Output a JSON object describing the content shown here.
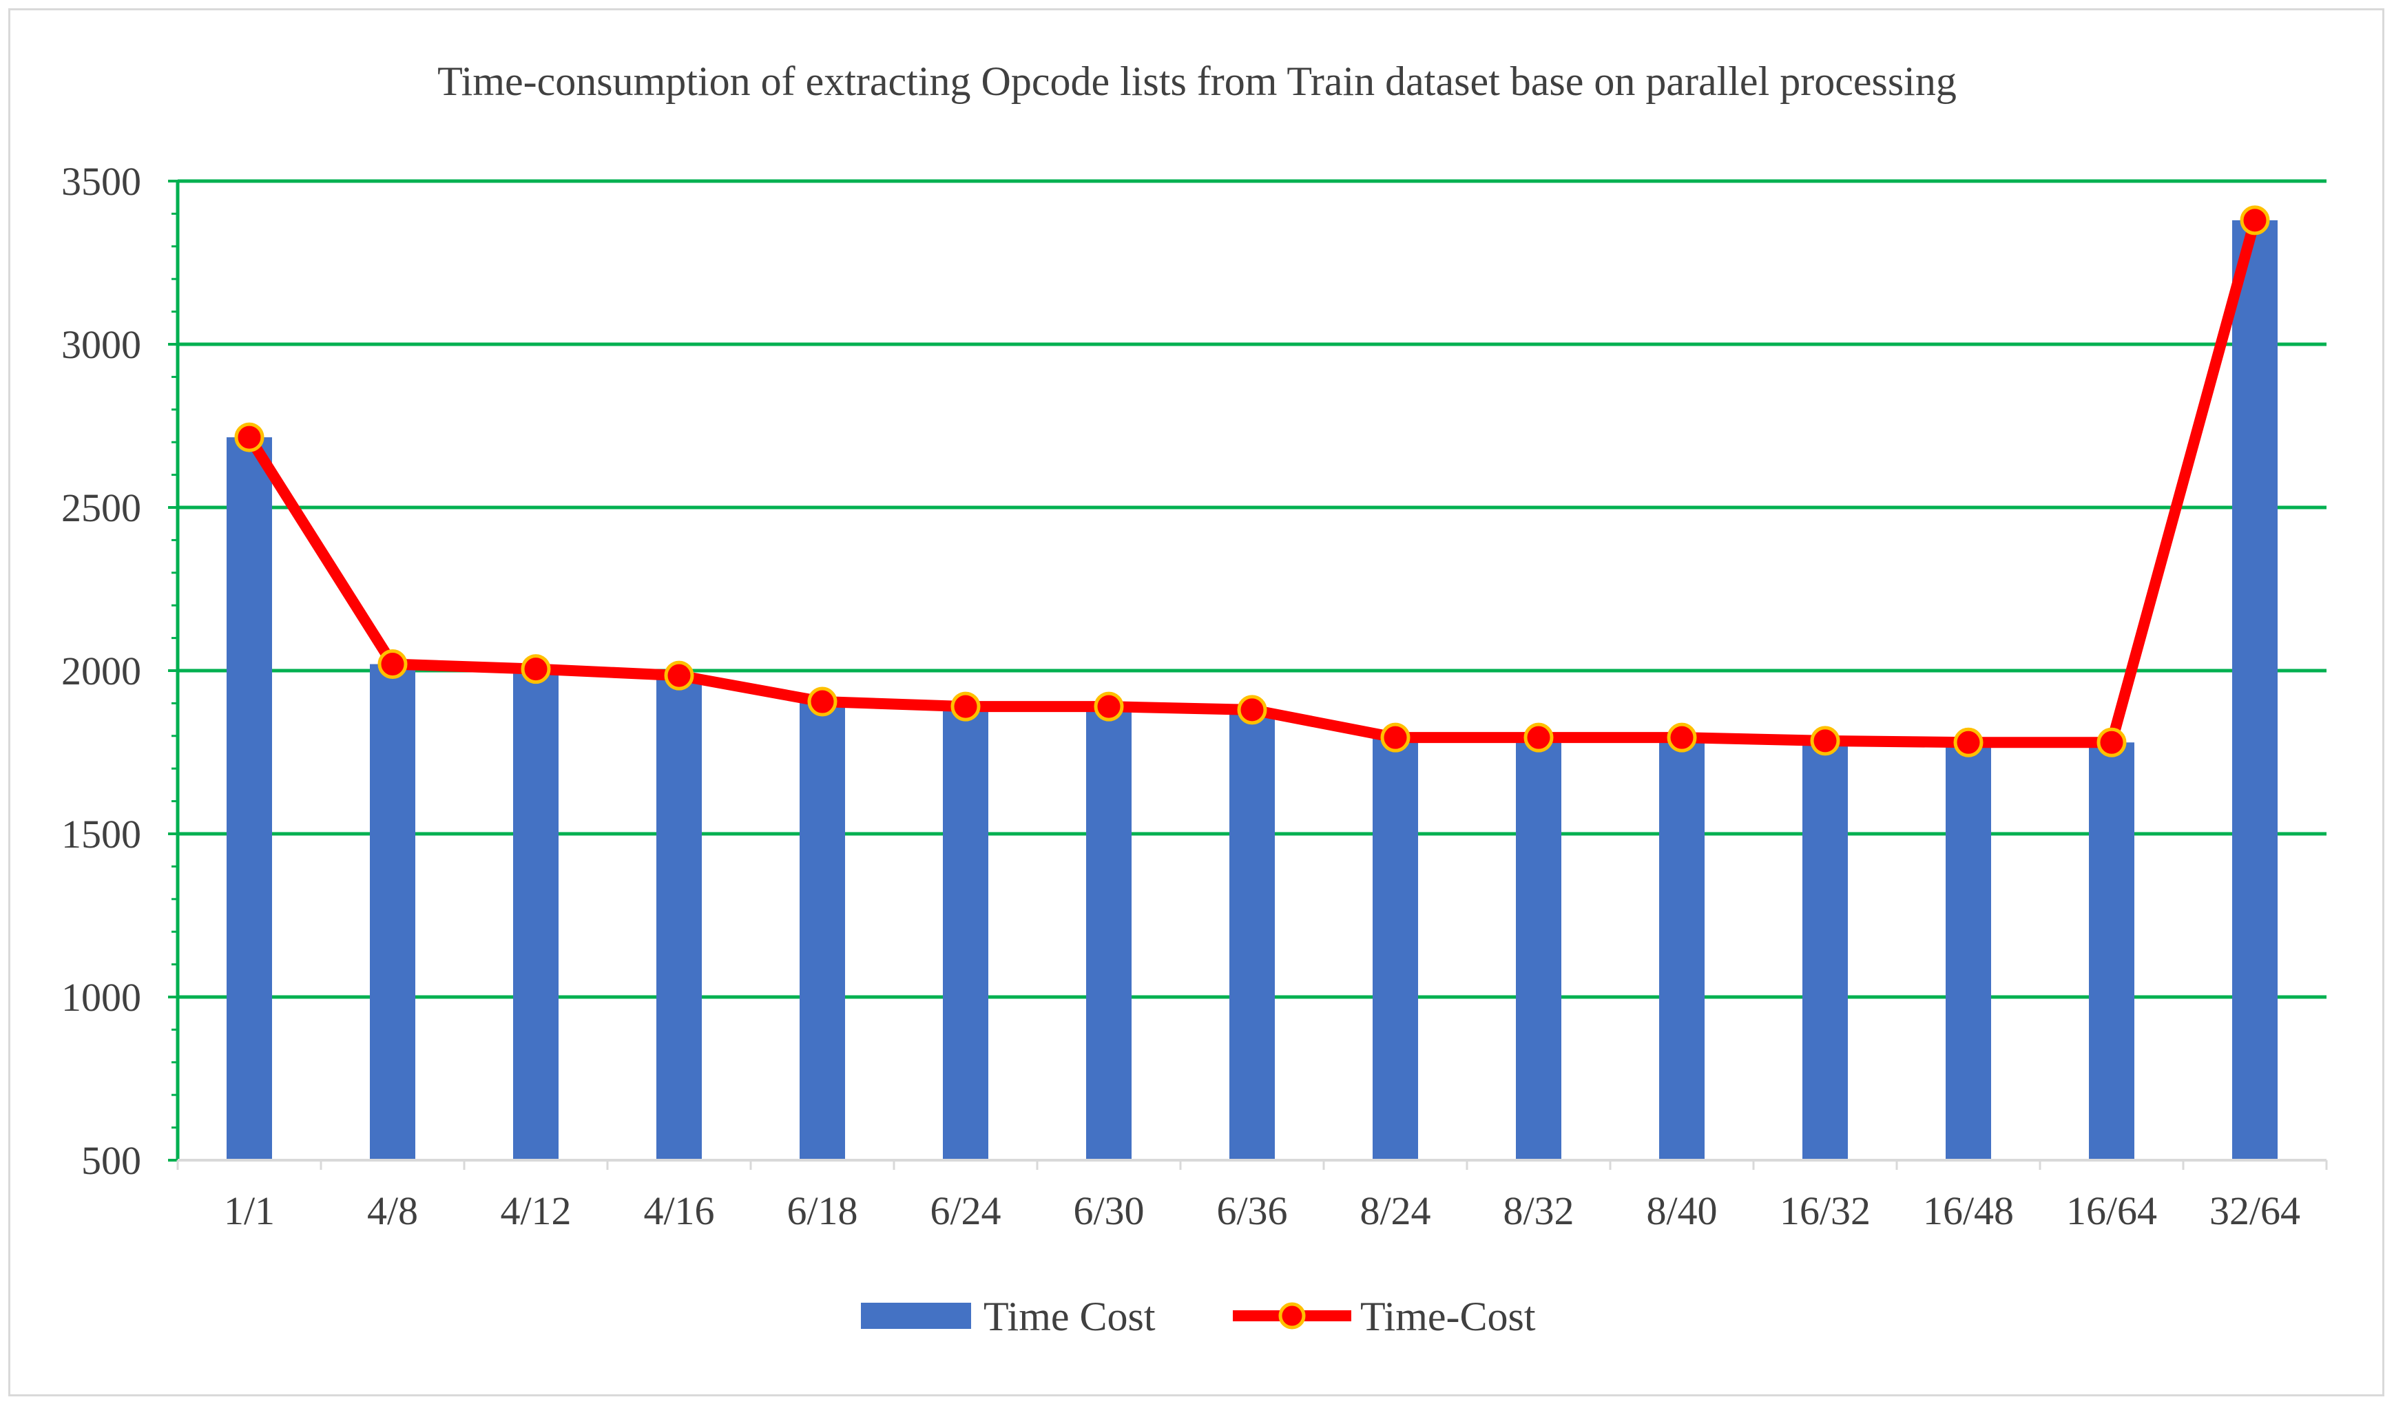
{
  "chart_data": {
    "type": "bar",
    "title": "Time-consumption of extracting Opcode lists from Train dataset base on parallel processing",
    "xlabel": "",
    "ylabel": "",
    "categories": [
      "1/1",
      "4/8",
      "4/12",
      "4/16",
      "6/18",
      "6/24",
      "6/30",
      "6/36",
      "8/24",
      "8/32",
      "8/40",
      "16/32",
      "16/48",
      "16/64",
      "32/64"
    ],
    "series": [
      {
        "name": "Time Cost",
        "type": "bar",
        "color": "#4472c4",
        "values": [
          2715,
          2020,
          2005,
          1985,
          1905,
          1890,
          1890,
          1880,
          1795,
          1795,
          1795,
          1785,
          1780,
          1780,
          3380
        ]
      },
      {
        "name": "Time-Cost",
        "type": "line",
        "color": "#ff0000",
        "marker_fill": "#ff0000",
        "marker_edge": "#ffc000",
        "values": [
          2715,
          2020,
          2005,
          1985,
          1905,
          1890,
          1890,
          1880,
          1795,
          1795,
          1795,
          1785,
          1780,
          1780,
          3380
        ]
      }
    ],
    "ylim": [
      500,
      3500
    ],
    "yticks": [
      500,
      1000,
      1500,
      2000,
      2500,
      3000,
      3500
    ],
    "grid": true,
    "grid_color": "#00b050",
    "legend": "bottom-center"
  }
}
